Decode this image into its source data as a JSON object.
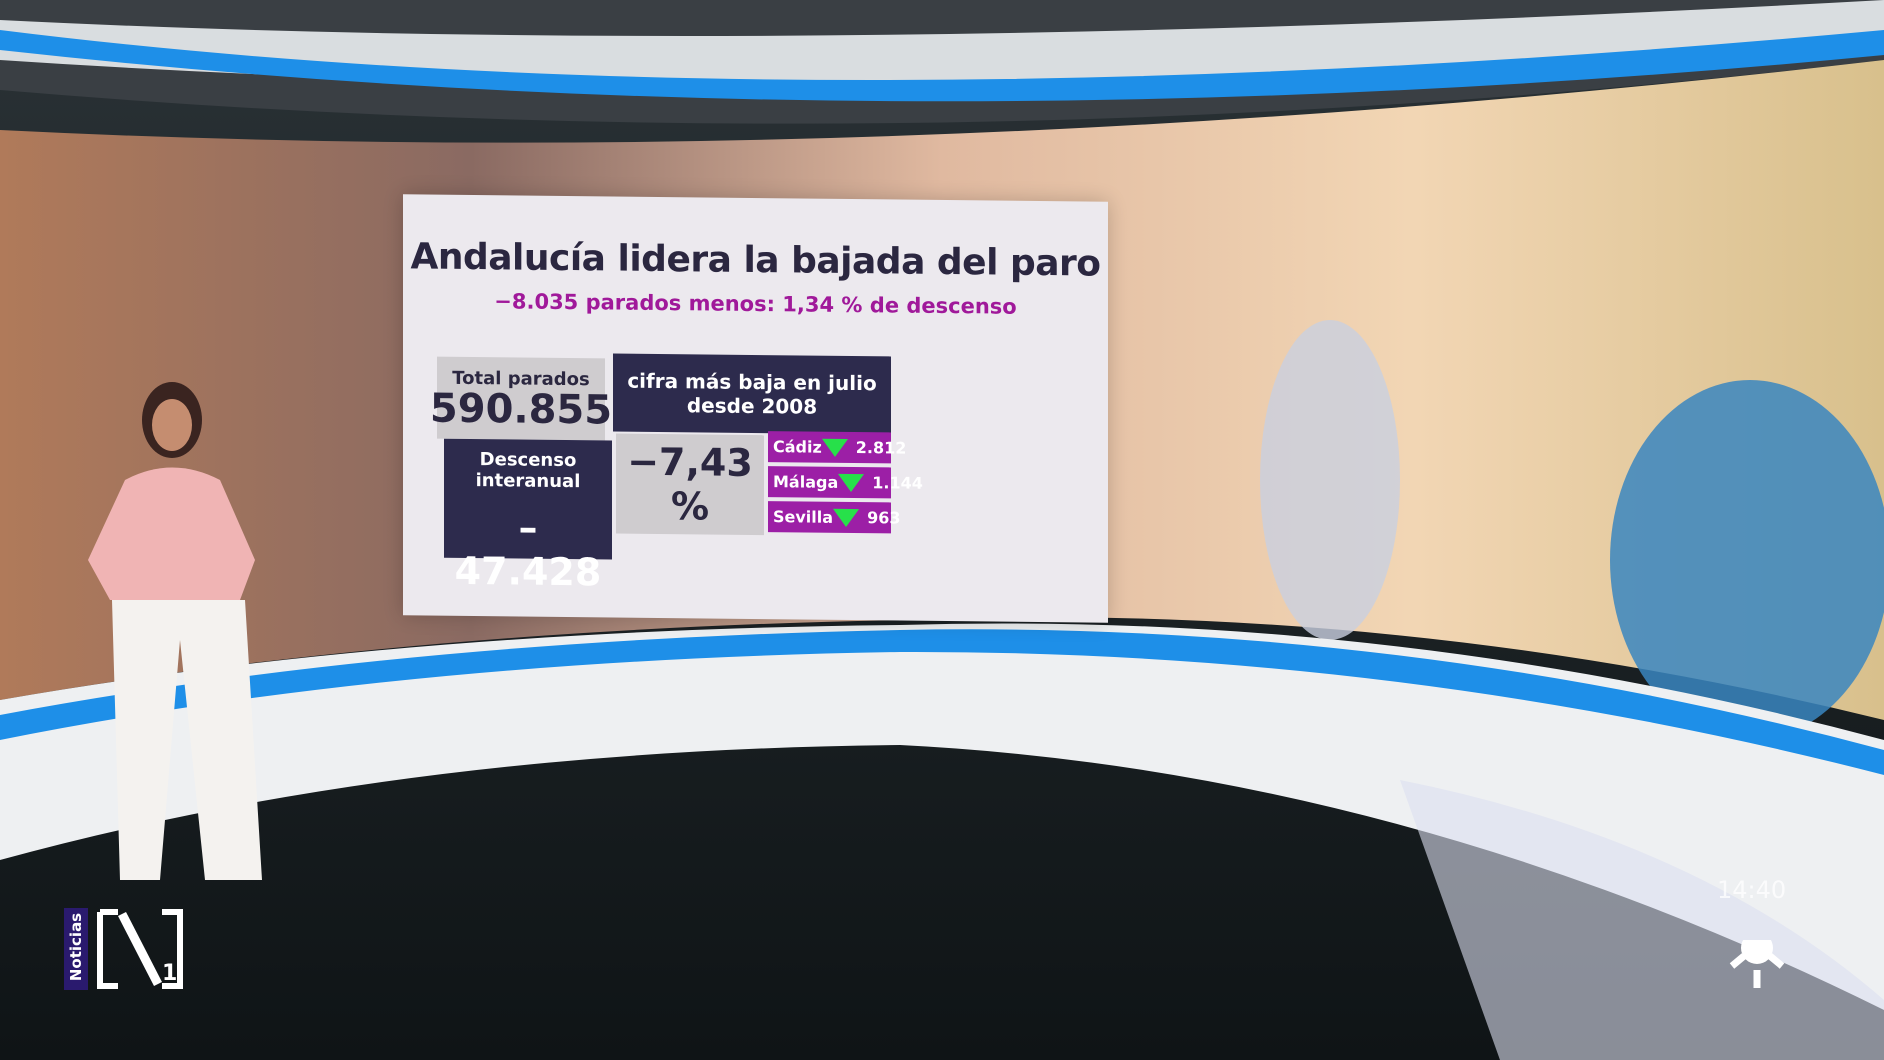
{
  "graphic": {
    "title": "Andalucía lidera la bajada del paro",
    "subtitle": "−8.035 parados menos: 1,34 % de descenso",
    "total": {
      "label": "Total parados",
      "value": "590.855"
    },
    "record_note": "cifra más baja en julio desde 2008",
    "interannual": {
      "label": "Descenso interanual",
      "value": "– 47.428",
      "percent": "−7,43 %"
    },
    "provinces": [
      {
        "name": "Cádiz",
        "trend": "down",
        "value": "2.812"
      },
      {
        "name": "Málaga",
        "trend": "down",
        "value": "1.144"
      },
      {
        "name": "Sevilla",
        "trend": "down",
        "value": "963"
      }
    ],
    "colors": {
      "navy": "#2d2b4d",
      "magenta": "#9c1fa6",
      "arrow": "#27e04a",
      "studio_blue": "#1e8fe8"
    }
  },
  "broadcast": {
    "channel_label": "Noticias",
    "logo_text": "N1",
    "clock": "14:40",
    "network_icon": "sun-icon"
  }
}
